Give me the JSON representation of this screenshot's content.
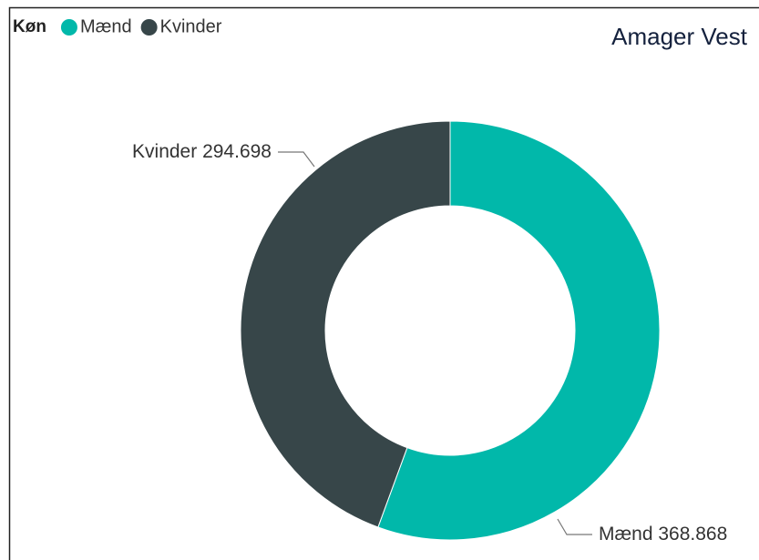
{
  "chart_data": {
    "type": "donut",
    "title": "Amager Vest",
    "legend_title": "Køn",
    "categories": [
      "Mænd",
      "Kvinder"
    ],
    "values": [
      368868,
      294698
    ],
    "value_labels": [
      "368.868",
      "294.698"
    ],
    "colors": [
      "#01B8AA",
      "#374649"
    ],
    "legend": "top-left"
  }
}
